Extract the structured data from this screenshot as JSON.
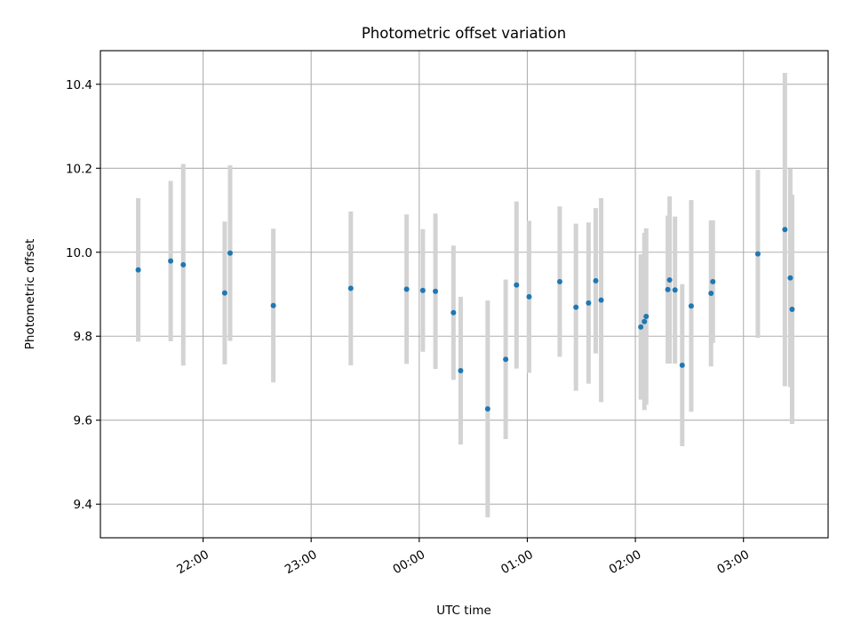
{
  "chart_data": {
    "type": "scatter",
    "title": "Photometric offset variation",
    "xlabel": "UTC time",
    "ylabel": "Photometric offset",
    "x_tick_labels": [
      "22:00",
      "23:00",
      "00:00",
      "01:00",
      "02:00",
      "03:00"
    ],
    "y_tick_labels": [
      "9.4",
      "9.6",
      "9.8",
      "10.0",
      "10.2",
      "10.4"
    ],
    "y_ticks": [
      9.4,
      9.6,
      9.8,
      10.0,
      10.2,
      10.4
    ],
    "ylim": [
      9.32,
      10.48
    ],
    "xlim": [
      "21:03",
      "03:47"
    ],
    "grid": true,
    "colors": {
      "points": "#1f77b4",
      "error_bars": "#d3d3d3",
      "grid": "#b0b0b0"
    },
    "points": [
      {
        "x": "21:24",
        "y": 9.958,
        "err": 0.171
      },
      {
        "x": "21:42",
        "y": 9.979,
        "err": 0.191
      },
      {
        "x": "21:49",
        "y": 9.97,
        "err": 0.24
      },
      {
        "x": "22:12",
        "y": 9.903,
        "err": 0.17
      },
      {
        "x": "22:15",
        "y": 9.998,
        "err": 0.209
      },
      {
        "x": "22:39",
        "y": 9.873,
        "err": 0.183
      },
      {
        "x": "23:22",
        "y": 9.914,
        "err": 0.183
      },
      {
        "x": "23:53",
        "y": 9.912,
        "err": 0.178
      },
      {
        "x": "00:02",
        "y": 9.909,
        "err": 0.146
      },
      {
        "x": "00:09",
        "y": 9.907,
        "err": 0.185
      },
      {
        "x": "00:19",
        "y": 9.856,
        "err": 0.16
      },
      {
        "x": "00:23",
        "y": 9.718,
        "err": 0.176
      },
      {
        "x": "00:38",
        "y": 9.627,
        "err": 0.258
      },
      {
        "x": "00:48",
        "y": 9.745,
        "err": 0.19
      },
      {
        "x": "00:54",
        "y": 9.922,
        "err": 0.199
      },
      {
        "x": "01:01",
        "y": 9.894,
        "err": 0.181
      },
      {
        "x": "01:18",
        "y": 9.93,
        "err": 0.179
      },
      {
        "x": "01:27",
        "y": 9.869,
        "err": 0.199
      },
      {
        "x": "01:34",
        "y": 9.879,
        "err": 0.192
      },
      {
        "x": "01:38",
        "y": 9.932,
        "err": 0.173
      },
      {
        "x": "01:41",
        "y": 9.886,
        "err": 0.243
      },
      {
        "x": "02:03",
        "y": 9.822,
        "err": 0.173
      },
      {
        "x": "02:05",
        "y": 9.835,
        "err": 0.211
      },
      {
        "x": "02:06",
        "y": 9.847,
        "err": 0.21
      },
      {
        "x": "02:18",
        "y": 9.911,
        "err": 0.176
      },
      {
        "x": "02:19",
        "y": 9.934,
        "err": 0.199
      },
      {
        "x": "02:22",
        "y": 9.91,
        "err": 0.175
      },
      {
        "x": "02:26",
        "y": 9.731,
        "err": 0.193
      },
      {
        "x": "02:31",
        "y": 9.872,
        "err": 0.252
      },
      {
        "x": "02:42",
        "y": 9.902,
        "err": 0.174
      },
      {
        "x": "02:43",
        "y": 9.93,
        "err": 0.146
      },
      {
        "x": "03:08",
        "y": 9.996,
        "err": 0.2
      },
      {
        "x": "03:23",
        "y": 10.054,
        "err": 0.373
      },
      {
        "x": "03:26",
        "y": 9.939,
        "err": 0.26
      },
      {
        "x": "03:27",
        "y": 9.864,
        "err": 0.273
      }
    ]
  }
}
